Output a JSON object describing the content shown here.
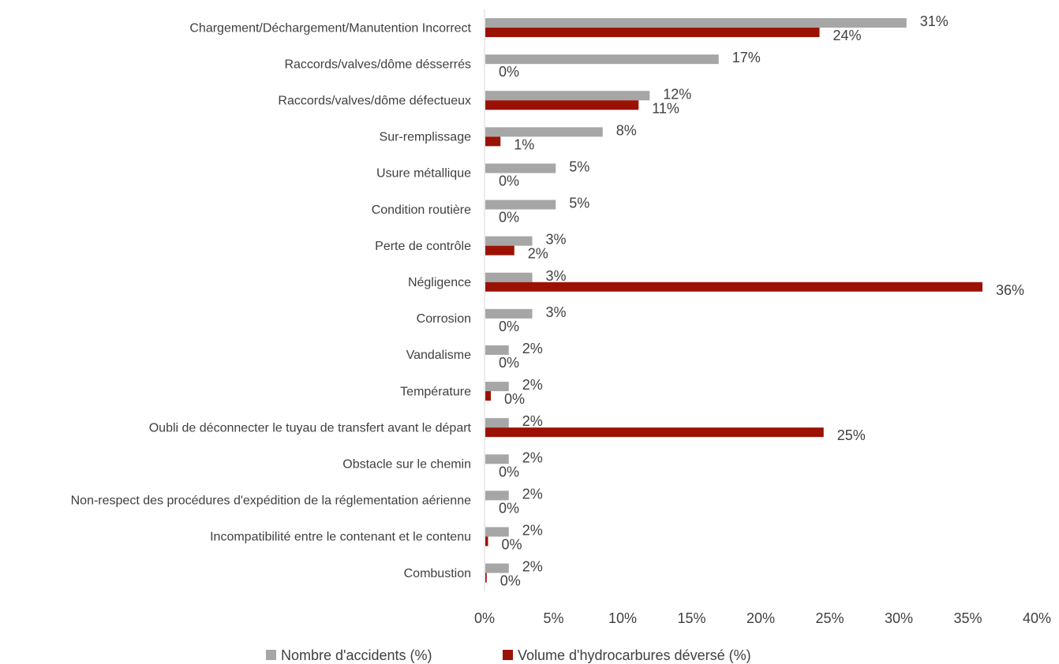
{
  "chart_data": {
    "type": "bar",
    "orientation": "horizontal",
    "title": "",
    "xlabel": "",
    "ylabel": "",
    "xlim": [
      0,
      40
    ],
    "ticks": [
      "0%",
      "5%",
      "10%",
      "15%",
      "20%",
      "25%",
      "30%",
      "35%",
      "40%"
    ],
    "grid": false,
    "legend_position": "bottom",
    "categories": [
      "Chargement/Déchargement/Manutention Incorrect",
      "Raccords/valves/dôme désserrés",
      "Raccords/valves/dôme défectueux",
      "Sur-remplissage",
      "Usure métallique",
      "Condition routière",
      "Perte de contrôle",
      "Négligence",
      "Corrosion",
      "Vandalisme",
      "Température",
      "Oubli de déconnecter le tuyau de transfert avant le départ",
      "Obstacle sur le chemin",
      "Non-respect des procédures d'expédition de la réglementation aérienne",
      "Incompatibilité entre le contenant et le contenu",
      "Combustion"
    ],
    "series": [
      {
        "name": "Nombre d'accidents (%)",
        "color": "#a6a6a6",
        "values": [
          30.5,
          16.9,
          11.9,
          8.5,
          5.1,
          5.1,
          3.4,
          3.4,
          3.4,
          1.7,
          1.7,
          1.7,
          1.7,
          1.7,
          1.7,
          1.7
        ],
        "labels": [
          "31%",
          "17%",
          "12%",
          "8%",
          "5%",
          "5%",
          "3%",
          "3%",
          "3%",
          "2%",
          "2%",
          "2%",
          "2%",
          "2%",
          "2%",
          "2%"
        ]
      },
      {
        "name": "Volume d'hydrocarbures déversé (%)",
        "color": "#9b1204",
        "values": [
          24.2,
          0,
          11.1,
          1.1,
          0,
          0,
          2.1,
          36.0,
          0,
          0,
          0.4,
          24.5,
          0,
          0,
          0.2,
          0.1
        ],
        "labels": [
          "24%",
          "0%",
          "11%",
          "1%",
          "0%",
          "0%",
          "2%",
          "36%",
          "0%",
          "0%",
          "0%",
          "25%",
          "0%",
          "0%",
          "0%",
          "0%"
        ]
      }
    ]
  }
}
